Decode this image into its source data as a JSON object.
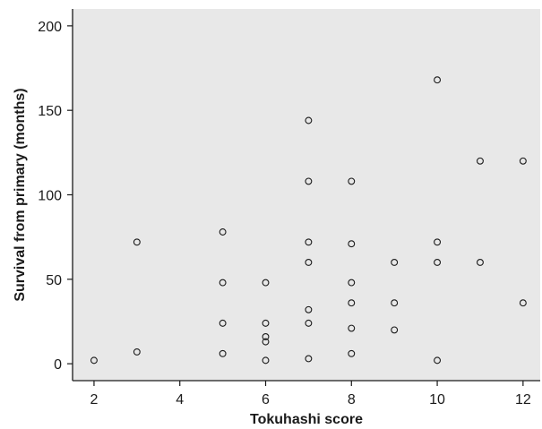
{
  "chart_data": {
    "type": "scatter",
    "title": "",
    "xlabel": "Tokuhashi score",
    "ylabel": "Survival from primary (months)",
    "xlim": [
      1.5,
      12.4
    ],
    "ylim": [
      -10,
      210
    ],
    "xticks": [
      2,
      4,
      6,
      8,
      10,
      12
    ],
    "yticks": [
      0,
      50,
      100,
      150,
      200
    ],
    "grid": false,
    "colors": {
      "plot_background": "#e8e8e8",
      "marker_stroke": "#1a1a1a",
      "axis": "#1a1a1a"
    },
    "series": [
      {
        "points": [
          {
            "x": 2,
            "y": 2
          },
          {
            "x": 3,
            "y": 72
          },
          {
            "x": 3,
            "y": 7
          },
          {
            "x": 5,
            "y": 78
          },
          {
            "x": 5,
            "y": 48
          },
          {
            "x": 5,
            "y": 24
          },
          {
            "x": 5,
            "y": 6
          },
          {
            "x": 6,
            "y": 48
          },
          {
            "x": 6,
            "y": 24
          },
          {
            "x": 6,
            "y": 16
          },
          {
            "x": 6,
            "y": 13
          },
          {
            "x": 6,
            "y": 2
          },
          {
            "x": 7,
            "y": 144
          },
          {
            "x": 7,
            "y": 108
          },
          {
            "x": 7,
            "y": 72
          },
          {
            "x": 7,
            "y": 60
          },
          {
            "x": 7,
            "y": 32
          },
          {
            "x": 7,
            "y": 24
          },
          {
            "x": 7,
            "y": 3
          },
          {
            "x": 8,
            "y": 108
          },
          {
            "x": 8,
            "y": 71
          },
          {
            "x": 8,
            "y": 48
          },
          {
            "x": 8,
            "y": 36
          },
          {
            "x": 8,
            "y": 21
          },
          {
            "x": 8,
            "y": 6
          },
          {
            "x": 9,
            "y": 60
          },
          {
            "x": 9,
            "y": 36
          },
          {
            "x": 9,
            "y": 20
          },
          {
            "x": 10,
            "y": 168
          },
          {
            "x": 10,
            "y": 72
          },
          {
            "x": 10,
            "y": 60
          },
          {
            "x": 10,
            "y": 2
          },
          {
            "x": 11,
            "y": 120
          },
          {
            "x": 11,
            "y": 60
          },
          {
            "x": 12,
            "y": 120
          },
          {
            "x": 12,
            "y": 36
          }
        ]
      }
    ]
  }
}
